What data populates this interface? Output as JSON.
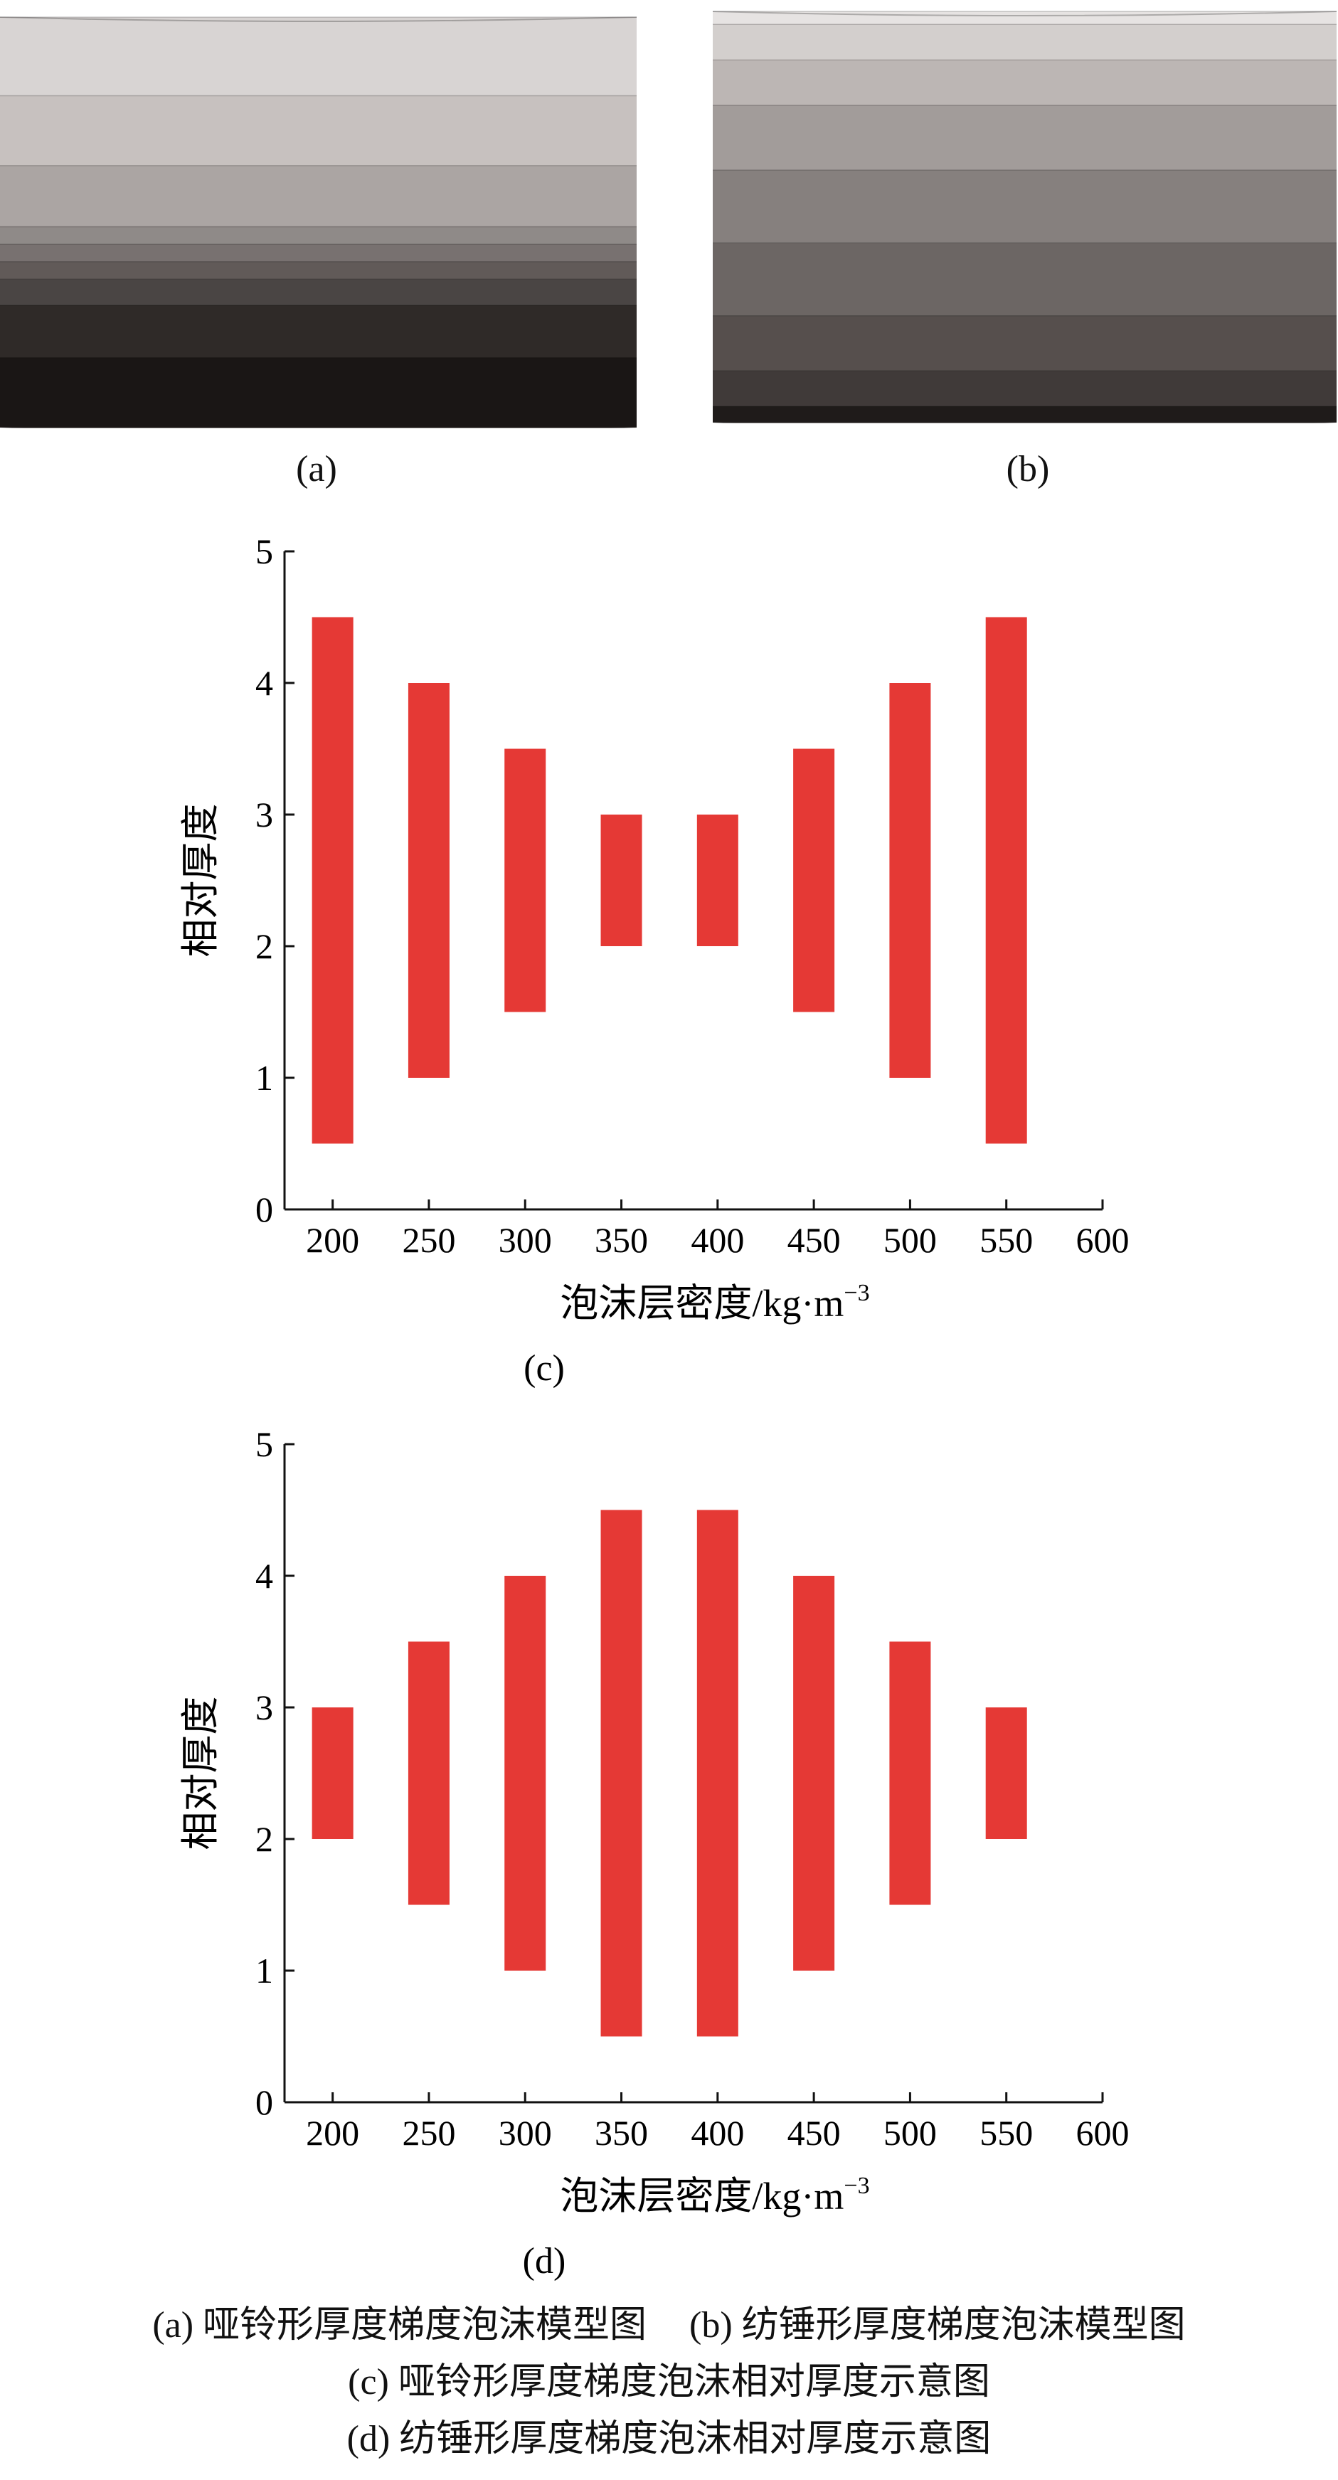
{
  "models": [
    {
      "label": "(a)",
      "shape": "dumbbell",
      "layer_colors": [
        "#d8d4d3",
        "#c7c1bf",
        "#aba5a3",
        "#8f8a88",
        "#787170",
        "#615a58",
        "#4a4544",
        "#2f2a28",
        "#1a1615"
      ],
      "layer_thickness": [
        4.5,
        4.0,
        3.5,
        1.0,
        1.0,
        1.0,
        1.5,
        3.0,
        4.0
      ]
    },
    {
      "label": "(b)",
      "shape": "spindle",
      "layer_colors": [
        "#e6e3e2",
        "#d3cfcd",
        "#bcb6b4",
        "#a29c9a",
        "#86807e",
        "#6c6664",
        "#564f4d",
        "#403a39",
        "#1f1b1a"
      ],
      "layer_thickness": [
        0.8,
        2.2,
        2.8,
        4.0,
        4.5,
        4.5,
        3.4,
        2.2,
        1.0
      ]
    }
  ],
  "chart_data": [
    {
      "type": "bar",
      "panel_label": "(c)",
      "title": "",
      "xlabel": "泡沫层密度/kg·m",
      "xlabel_sup": "−3",
      "ylabel": "相对厚度",
      "xlim": [
        175,
        600
      ],
      "ylim": [
        0,
        5
      ],
      "xticks": [
        "200",
        "250",
        "300",
        "350",
        "400",
        "450",
        "500",
        "550",
        "600"
      ],
      "yticks": [
        "0",
        "1",
        "2",
        "3",
        "4",
        "5"
      ],
      "bar_color": "#e53935",
      "categories": [
        200,
        250,
        300,
        350,
        400,
        450,
        500,
        550
      ],
      "bottom": [
        0.5,
        1.0,
        1.5,
        2.0,
        2.0,
        1.5,
        1.0,
        0.5
      ],
      "top": [
        4.5,
        4.0,
        3.5,
        3.0,
        3.0,
        3.5,
        4.0,
        4.5
      ]
    },
    {
      "type": "bar",
      "panel_label": "(d)",
      "title": "",
      "xlabel": "泡沫层密度/kg·m",
      "xlabel_sup": "−3",
      "ylabel": "相对厚度",
      "xlim": [
        175,
        600
      ],
      "ylim": [
        0,
        5
      ],
      "xticks": [
        "200",
        "250",
        "300",
        "350",
        "400",
        "450",
        "500",
        "550",
        "600"
      ],
      "yticks": [
        "0",
        "1",
        "2",
        "3",
        "4",
        "5"
      ],
      "bar_color": "#e53935",
      "categories": [
        200,
        250,
        300,
        350,
        400,
        450,
        500,
        550
      ],
      "bottom": [
        2.0,
        1.5,
        1.0,
        0.5,
        0.5,
        1.0,
        1.5,
        2.0
      ],
      "top": [
        3.0,
        3.5,
        4.0,
        4.5,
        4.5,
        4.0,
        3.5,
        3.0
      ]
    }
  ],
  "caption": {
    "line1_a": "(a) 哑铃形厚度梯度泡沫模型图",
    "line1_b": "(b) 纺锤形厚度梯度泡沫模型图",
    "line2": "(c) 哑铃形厚度梯度泡沫相对厚度示意图",
    "line3": "(d) 纺锤形厚度梯度泡沫相对厚度示意图"
  }
}
